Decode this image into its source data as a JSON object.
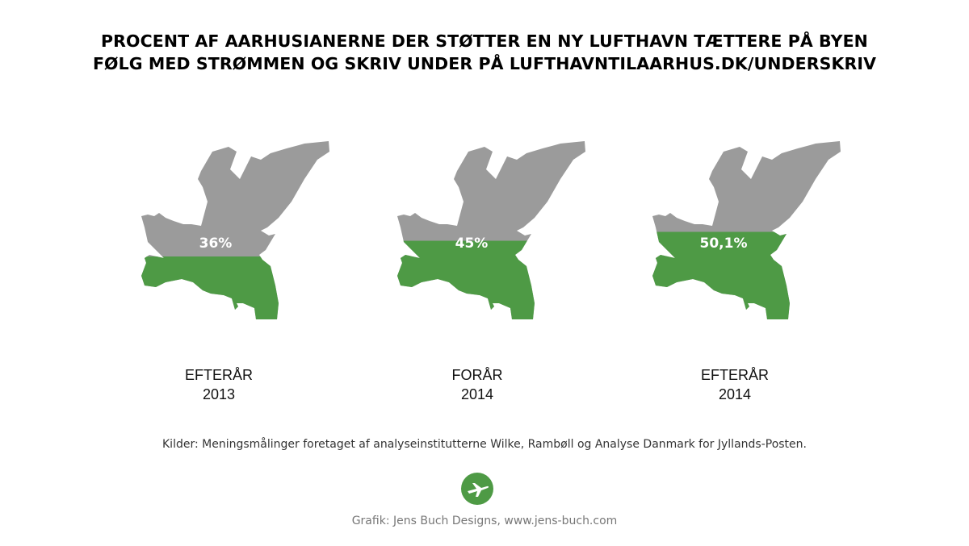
{
  "title": {
    "line1": "PROCENT AF AARHUSIANERNE DER STØTTER EN NY LUFTHAVN TÆTTERE PÅ BYEN",
    "line2": "FØLG MED STRØMMEN OG SKRIV UNDER PÅ LUFTHAVNTILAARHUS.DK/UNDERSKRIV"
  },
  "colors": {
    "fill": "#4e9a45",
    "empty": "#9b9b9b",
    "text_on_fill": "#ffffff"
  },
  "chart_data": {
    "type": "bar",
    "title": "PROCENT AF AARHUSIANERNE DER STØTTER EN NY LUFTHAVN TÆTTERE PÅ BYEN",
    "categories": [
      "EFTERÅR 2013",
      "FORÅR 2014",
      "EFTERÅR 2014"
    ],
    "values": [
      36,
      45,
      50.1
    ],
    "ylim": [
      0,
      100
    ],
    "labels": [
      "36%",
      "45%",
      "50,1%"
    ],
    "periods": [
      {
        "season": "EFTERÅR",
        "year": "2013"
      },
      {
        "season": "FORÅR",
        "year": "2014"
      },
      {
        "season": "EFTERÅR",
        "year": "2014"
      }
    ]
  },
  "source": "Kilder: Meningsmålinger foretaget af analyseinstitutterne Wilke, Rambøll og Analyse Danmark for Jyllands-Posten.",
  "logo_icon": "airplane-icon",
  "credit": "Grafik: Jens Buch Designs, www.jens-buch.com"
}
